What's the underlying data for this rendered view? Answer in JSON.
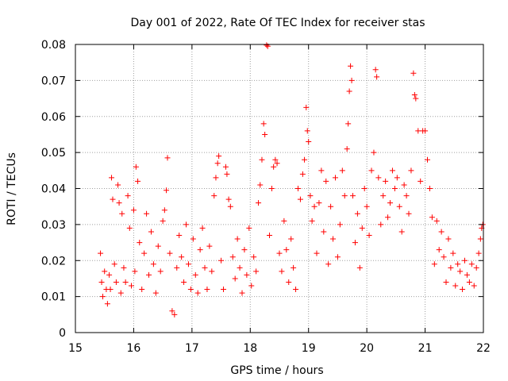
{
  "chart_data": {
    "type": "scatter",
    "title": "Day 001 of 2022, Rate Of TEC Index for receiver stas",
    "xlabel": "GPS time / hours",
    "ylabel": "ROTI / TECUs",
    "xlim": [
      15,
      22
    ],
    "ylim": [
      0,
      0.08
    ],
    "x_ticks": [
      15,
      16,
      17,
      18,
      19,
      20,
      21,
      22
    ],
    "x_tick_labels": [
      "15",
      "16",
      "17",
      "18",
      "19",
      "20",
      "21",
      "22"
    ],
    "y_ticks": [
      0,
      0.01,
      0.02,
      0.03,
      0.04,
      0.05,
      0.06,
      0.07,
      0.08
    ],
    "y_tick_labels": [
      "0",
      "0.01",
      "0.02",
      "0.03",
      "0.04",
      "0.05",
      "0.06",
      "0.07",
      "0.08"
    ],
    "grid": true,
    "legend": "none",
    "marker": "+",
    "color": "#ff0000",
    "series": [
      {
        "points": [
          [
            15.43,
            0.022
          ],
          [
            15.45,
            0.014
          ],
          [
            15.47,
            0.01
          ],
          [
            15.5,
            0.017
          ],
          [
            15.53,
            0.012
          ],
          [
            15.55,
            0.008
          ],
          [
            15.58,
            0.016
          ],
          [
            15.6,
            0.012
          ],
          [
            15.62,
            0.043
          ],
          [
            15.64,
            0.037
          ],
          [
            15.67,
            0.019
          ],
          [
            15.7,
            0.014
          ],
          [
            15.73,
            0.041
          ],
          [
            15.75,
            0.036
          ],
          [
            15.78,
            0.011
          ],
          [
            15.8,
            0.033
          ],
          [
            15.83,
            0.018
          ],
          [
            15.86,
            0.014
          ],
          [
            15.9,
            0.038
          ],
          [
            15.93,
            0.029
          ],
          [
            15.96,
            0.013
          ],
          [
            16.0,
            0.034
          ],
          [
            16.02,
            0.017
          ],
          [
            16.04,
            0.046
          ],
          [
            16.07,
            0.042
          ],
          [
            16.1,
            0.025
          ],
          [
            16.14,
            0.012
          ],
          [
            16.18,
            0.022
          ],
          [
            16.22,
            0.033
          ],
          [
            16.26,
            0.016
          ],
          [
            16.3,
            0.028
          ],
          [
            16.34,
            0.019
          ],
          [
            16.38,
            0.011
          ],
          [
            16.42,
            0.024
          ],
          [
            16.46,
            0.017
          ],
          [
            16.5,
            0.031
          ],
          [
            16.53,
            0.034
          ],
          [
            16.56,
            0.0395
          ],
          [
            16.58,
            0.0485
          ],
          [
            16.62,
            0.022
          ],
          [
            16.66,
            0.006
          ],
          [
            16.7,
            0.005
          ],
          [
            16.74,
            0.018
          ],
          [
            16.78,
            0.027
          ],
          [
            16.82,
            0.021
          ],
          [
            16.86,
            0.014
          ],
          [
            16.9,
            0.03
          ],
          [
            16.94,
            0.019
          ],
          [
            16.98,
            0.012
          ],
          [
            17.02,
            0.026
          ],
          [
            17.06,
            0.016
          ],
          [
            17.1,
            0.011
          ],
          [
            17.14,
            0.023
          ],
          [
            17.18,
            0.029
          ],
          [
            17.22,
            0.018
          ],
          [
            17.26,
            0.012
          ],
          [
            17.3,
            0.024
          ],
          [
            17.34,
            0.017
          ],
          [
            17.38,
            0.038
          ],
          [
            17.41,
            0.043
          ],
          [
            17.44,
            0.047
          ],
          [
            17.46,
            0.049
          ],
          [
            17.5,
            0.02
          ],
          [
            17.54,
            0.012
          ],
          [
            17.58,
            0.046
          ],
          [
            17.6,
            0.044
          ],
          [
            17.63,
            0.037
          ],
          [
            17.66,
            0.035
          ],
          [
            17.7,
            0.021
          ],
          [
            17.74,
            0.015
          ],
          [
            17.78,
            0.026
          ],
          [
            17.82,
            0.018
          ],
          [
            17.86,
            0.011
          ],
          [
            17.9,
            0.023
          ],
          [
            17.94,
            0.016
          ],
          [
            17.98,
            0.029
          ],
          [
            18.02,
            0.013
          ],
          [
            18.06,
            0.021
          ],
          [
            18.1,
            0.017
          ],
          [
            18.14,
            0.036
          ],
          [
            18.17,
            0.041
          ],
          [
            18.2,
            0.048
          ],
          [
            18.23,
            0.058
          ],
          [
            18.25,
            0.055
          ],
          [
            18.28,
            0.0798
          ],
          [
            18.3,
            0.0795
          ],
          [
            18.33,
            0.027
          ],
          [
            18.37,
            0.04
          ],
          [
            18.4,
            0.046
          ],
          [
            18.43,
            0.048
          ],
          [
            18.46,
            0.047
          ],
          [
            18.5,
            0.022
          ],
          [
            18.54,
            0.017
          ],
          [
            18.58,
            0.031
          ],
          [
            18.62,
            0.023
          ],
          [
            18.66,
            0.014
          ],
          [
            18.7,
            0.026
          ],
          [
            18.74,
            0.018
          ],
          [
            18.78,
            0.012
          ],
          [
            18.82,
            0.04
          ],
          [
            18.86,
            0.037
          ],
          [
            18.9,
            0.044
          ],
          [
            18.93,
            0.048
          ],
          [
            18.96,
            0.0625
          ],
          [
            18.98,
            0.056
          ],
          [
            19.0,
            0.053
          ],
          [
            19.03,
            0.038
          ],
          [
            19.06,
            0.031
          ],
          [
            19.1,
            0.035
          ],
          [
            19.14,
            0.022
          ],
          [
            19.18,
            0.036
          ],
          [
            19.22,
            0.045
          ],
          [
            19.26,
            0.028
          ],
          [
            19.3,
            0.042
          ],
          [
            19.34,
            0.019
          ],
          [
            19.38,
            0.035
          ],
          [
            19.42,
            0.026
          ],
          [
            19.46,
            0.043
          ],
          [
            19.5,
            0.021
          ],
          [
            19.54,
            0.03
          ],
          [
            19.58,
            0.045
          ],
          [
            19.62,
            0.038
          ],
          [
            19.66,
            0.051
          ],
          [
            19.68,
            0.058
          ],
          [
            19.7,
            0.067
          ],
          [
            19.72,
            0.074
          ],
          [
            19.74,
            0.07
          ],
          [
            19.76,
            0.038
          ],
          [
            19.8,
            0.025
          ],
          [
            19.84,
            0.033
          ],
          [
            19.88,
            0.018
          ],
          [
            19.92,
            0.029
          ],
          [
            19.96,
            0.04
          ],
          [
            20.0,
            0.035
          ],
          [
            20.04,
            0.027
          ],
          [
            20.08,
            0.045
          ],
          [
            20.12,
            0.05
          ],
          [
            20.15,
            0.073
          ],
          [
            20.17,
            0.071
          ],
          [
            20.2,
            0.043
          ],
          [
            20.24,
            0.03
          ],
          [
            20.28,
            0.038
          ],
          [
            20.32,
            0.042
          ],
          [
            20.36,
            0.032
          ],
          [
            20.4,
            0.036
          ],
          [
            20.44,
            0.045
          ],
          [
            20.48,
            0.04
          ],
          [
            20.52,
            0.043
          ],
          [
            20.56,
            0.035
          ],
          [
            20.6,
            0.028
          ],
          [
            20.64,
            0.041
          ],
          [
            20.68,
            0.038
          ],
          [
            20.72,
            0.033
          ],
          [
            20.76,
            0.045
          ],
          [
            20.8,
            0.072
          ],
          [
            20.82,
            0.066
          ],
          [
            20.84,
            0.065
          ],
          [
            20.88,
            0.056
          ],
          [
            20.92,
            0.042
          ],
          [
            20.96,
            0.056
          ],
          [
            21.0,
            0.056
          ],
          [
            21.04,
            0.048
          ],
          [
            21.08,
            0.04
          ],
          [
            21.12,
            0.032
          ],
          [
            21.16,
            0.019
          ],
          [
            21.2,
            0.031
          ],
          [
            21.24,
            0.023
          ],
          [
            21.28,
            0.028
          ],
          [
            21.32,
            0.021
          ],
          [
            21.36,
            0.014
          ],
          [
            21.4,
            0.026
          ],
          [
            21.44,
            0.018
          ],
          [
            21.48,
            0.022
          ],
          [
            21.52,
            0.013
          ],
          [
            21.56,
            0.019
          ],
          [
            21.6,
            0.017
          ],
          [
            21.64,
            0.012
          ],
          [
            21.68,
            0.02
          ],
          [
            21.72,
            0.016
          ],
          [
            21.76,
            0.014
          ],
          [
            21.8,
            0.019
          ],
          [
            21.84,
            0.013
          ],
          [
            21.88,
            0.018
          ],
          [
            21.92,
            0.022
          ],
          [
            21.95,
            0.026
          ],
          [
            21.97,
            0.029
          ],
          [
            21.99,
            0.03
          ]
        ]
      }
    ]
  }
}
